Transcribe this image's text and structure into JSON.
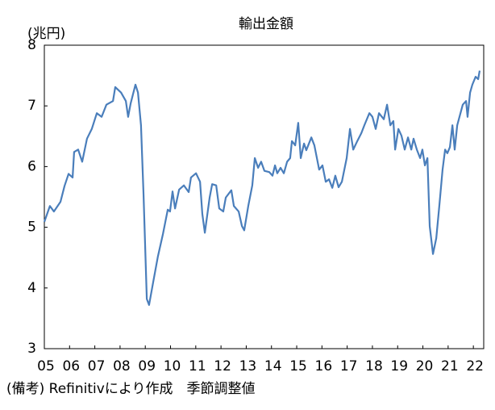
{
  "chart_data": {
    "type": "line",
    "title": "輸出金額",
    "y_label": "(兆円)",
    "note": "(備考) Refinitivにより作成　季節調整値",
    "xlim": [
      2005,
      2022.41
    ],
    "xticks": [
      {
        "value": 2005,
        "label": "05"
      },
      {
        "value": 2006,
        "label": "06"
      },
      {
        "value": 2007,
        "label": "07"
      },
      {
        "value": 2008,
        "label": "08"
      },
      {
        "value": 2009,
        "label": "09"
      },
      {
        "value": 2010,
        "label": "10"
      },
      {
        "value": 2011,
        "label": "11"
      },
      {
        "value": 2012,
        "label": "12"
      },
      {
        "value": 2013,
        "label": "13"
      },
      {
        "value": 2014,
        "label": "14"
      },
      {
        "value": 2015,
        "label": "15"
      },
      {
        "value": 2016,
        "label": "16"
      },
      {
        "value": 2017,
        "label": "17"
      },
      {
        "value": 2018,
        "label": "18"
      },
      {
        "value": 2019,
        "label": "19"
      },
      {
        "value": 2020,
        "label": "20"
      },
      {
        "value": 2021,
        "label": "21"
      },
      {
        "value": 2022,
        "label": "22"
      }
    ],
    "ylim": [
      3,
      8
    ],
    "yticks": [
      3,
      4,
      5,
      6,
      7,
      8
    ],
    "grid": false,
    "x": [
      2005.0,
      2005.22,
      2005.38,
      2005.64,
      2005.8,
      2005.96,
      2006.12,
      2006.18,
      2006.34,
      2006.5,
      2006.69,
      2006.88,
      2007.08,
      2007.27,
      2007.46,
      2007.72,
      2007.81,
      2008.04,
      2008.23,
      2008.32,
      2008.42,
      2008.61,
      2008.71,
      2008.83,
      2008.93,
      2009.06,
      2009.15,
      2009.31,
      2009.5,
      2009.7,
      2009.89,
      2009.98,
      2010.08,
      2010.18,
      2010.34,
      2010.53,
      2010.72,
      2010.81,
      2011.01,
      2011.17,
      2011.26,
      2011.36,
      2011.55,
      2011.65,
      2011.81,
      2011.93,
      2012.09,
      2012.19,
      2012.41,
      2012.51,
      2012.7,
      2012.83,
      2012.92,
      2013.08,
      2013.24,
      2013.34,
      2013.47,
      2013.59,
      2013.72,
      2013.91,
      2014.04,
      2014.14,
      2014.23,
      2014.36,
      2014.49,
      2014.62,
      2014.74,
      2014.81,
      2014.94,
      2015.06,
      2015.16,
      2015.29,
      2015.38,
      2015.58,
      2015.7,
      2015.89,
      2016.02,
      2016.15,
      2016.28,
      2016.41,
      2016.53,
      2016.66,
      2016.79,
      2016.98,
      2017.11,
      2017.24,
      2017.4,
      2017.56,
      2017.68,
      2017.88,
      2018.0,
      2018.13,
      2018.26,
      2018.45,
      2018.58,
      2018.71,
      2018.83,
      2018.9,
      2019.03,
      2019.15,
      2019.28,
      2019.41,
      2019.54,
      2019.63,
      2019.76,
      2019.89,
      2019.98,
      2020.08,
      2020.18,
      2020.27,
      2020.4,
      2020.53,
      2020.65,
      2020.78,
      2020.88,
      2020.97,
      2021.07,
      2021.17,
      2021.26,
      2021.36,
      2021.45,
      2021.58,
      2021.71,
      2021.77,
      2021.87,
      2021.96,
      2022.09,
      2022.19,
      2022.25
    ],
    "series": [
      {
        "name": "輸出金額",
        "color": "#4a7ebb",
        "values": [
          5.09,
          5.35,
          5.26,
          5.42,
          5.68,
          5.88,
          5.82,
          6.24,
          6.28,
          6.08,
          6.46,
          6.62,
          6.88,
          6.82,
          7.02,
          7.08,
          7.31,
          7.22,
          7.08,
          6.82,
          7.04,
          7.35,
          7.22,
          6.68,
          5.55,
          3.82,
          3.72,
          4.09,
          4.52,
          4.89,
          5.29,
          5.26,
          5.59,
          5.31,
          5.62,
          5.69,
          5.58,
          5.82,
          5.89,
          5.75,
          5.22,
          4.91,
          5.49,
          5.71,
          5.69,
          5.31,
          5.26,
          5.49,
          5.61,
          5.35,
          5.26,
          5.02,
          4.95,
          5.35,
          5.69,
          6.14,
          5.98,
          6.08,
          5.93,
          5.91,
          5.85,
          6.02,
          5.89,
          5.98,
          5.89,
          6.08,
          6.14,
          6.42,
          6.35,
          6.72,
          6.14,
          6.38,
          6.27,
          6.48,
          6.35,
          5.95,
          6.02,
          5.75,
          5.79,
          5.65,
          5.85,
          5.66,
          5.75,
          6.14,
          6.62,
          6.28,
          6.42,
          6.55,
          6.68,
          6.88,
          6.82,
          6.62,
          6.88,
          6.78,
          7.02,
          6.68,
          6.75,
          6.28,
          6.62,
          6.51,
          6.28,
          6.48,
          6.28,
          6.46,
          6.28,
          6.14,
          6.28,
          6.02,
          6.14,
          5.02,
          4.56,
          4.82,
          5.35,
          5.95,
          6.28,
          6.22,
          6.32,
          6.68,
          6.28,
          6.68,
          6.82,
          7.02,
          7.08,
          6.82,
          7.22,
          7.35,
          7.48,
          7.44,
          7.58
        ]
      }
    ]
  }
}
